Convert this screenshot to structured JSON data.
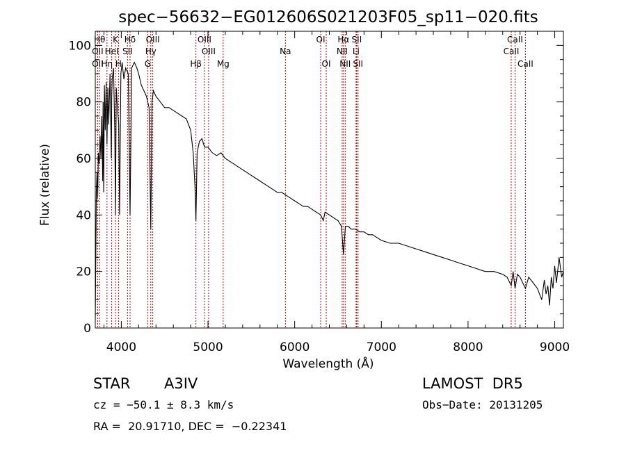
{
  "chart_data": {
    "type": "line",
    "title": "spec−56632−EG012606S021203F05_sp11−020.fits",
    "xlabel": "Wavelength (Å)",
    "ylabel": "Flux (relative)",
    "xlim": [
      3700,
      9100
    ],
    "ylim": [
      0,
      105
    ],
    "x_ticks": [
      4000,
      5000,
      6000,
      7000,
      8000,
      9000
    ],
    "y_ticks": [
      0,
      20,
      40,
      60,
      80,
      100
    ],
    "grid": false,
    "line_color": "#000000",
    "marker_color": "#cc0000",
    "spectrum": {
      "name": "",
      "x": [
        3700,
        3712,
        3720,
        3728,
        3735,
        3745,
        3755,
        3765,
        3775,
        3785,
        3790,
        3797,
        3805,
        3815,
        3825,
        3835,
        3845,
        3855,
        3870,
        3885,
        3889,
        3895,
        3910,
        3925,
        3933,
        3942,
        3955,
        3970,
        3980,
        3995,
        4010,
        4030,
        4050,
        4080,
        4101,
        4120,
        4150,
        4180,
        4200,
        4230,
        4260,
        4290,
        4320,
        4340,
        4355,
        4370,
        4400,
        4450,
        4500,
        4550,
        4600,
        4650,
        4700,
        4750,
        4800,
        4830,
        4850,
        4861,
        4875,
        4900,
        4930,
        4960,
        5000,
        5050,
        5100,
        5150,
        5200,
        5250,
        5300,
        5350,
        5400,
        5450,
        5500,
        5550,
        5600,
        5650,
        5700,
        5750,
        5800,
        5850,
        5900,
        5950,
        6000,
        6050,
        6100,
        6150,
        6200,
        6250,
        6300,
        6330,
        6350,
        6400,
        6450,
        6500,
        6540,
        6563,
        6585,
        6620,
        6650,
        6700,
        6750,
        6800,
        6850,
        6900,
        6950,
        7000,
        7100,
        7200,
        7300,
        7400,
        7500,
        7600,
        7700,
        7800,
        7900,
        8000,
        8100,
        8200,
        8300,
        8400,
        8450,
        8498,
        8520,
        8542,
        8570,
        8600,
        8662,
        8700,
        8750,
        8800,
        8850,
        8880,
        8900,
        8920,
        8940,
        8960,
        8980,
        9000,
        9020,
        9050,
        9080,
        9100
      ],
      "y": [
        3,
        48,
        55,
        46,
        62,
        58,
        68,
        60,
        75,
        52,
        80,
        48,
        86,
        70,
        87,
        65,
        85,
        72,
        90,
        60,
        82,
        88,
        92,
        70,
        40,
        85,
        78,
        72,
        40,
        90,
        94,
        88,
        92,
        90,
        40,
        92,
        94,
        92,
        90,
        86,
        84,
        82,
        78,
        35,
        80,
        84,
        82,
        80,
        78,
        78,
        77,
        76,
        75,
        74,
        70,
        62,
        50,
        38,
        62,
        66,
        67,
        64,
        64,
        62,
        61,
        62,
        60,
        59,
        58,
        57,
        56,
        55,
        54,
        53,
        52,
        51,
        50,
        49,
        48,
        48,
        47,
        46,
        45,
        44,
        43,
        43,
        42,
        41,
        40,
        38,
        41,
        40,
        39,
        38,
        36,
        26,
        36,
        36,
        35,
        35,
        34,
        34,
        33,
        33,
        32,
        31,
        30,
        30,
        29,
        28,
        27,
        26,
        25,
        24,
        23,
        22,
        21,
        20,
        20,
        19,
        18,
        15,
        20,
        14,
        19,
        18,
        14,
        18,
        16,
        14,
        10,
        17,
        12,
        15,
        8,
        18,
        14,
        22,
        16,
        25,
        18,
        20
      ]
    },
    "line_markers": [
      {
        "label": "Hθ",
        "x": 3750,
        "row": 1
      },
      {
        "label": "OII",
        "x": 3727,
        "row": 2
      },
      {
        "label": "OII",
        "x": 3727,
        "row": 3
      },
      {
        "label": "Hη",
        "x": 3835,
        "row": 3
      },
      {
        "label": "K",
        "x": 3933,
        "row": 1
      },
      {
        "label": "HeI",
        "x": 3889,
        "row": 2
      },
      {
        "label": "H",
        "x": 3968,
        "row": 3
      },
      {
        "label": "Hδ",
        "x": 4101,
        "row": 1
      },
      {
        "label": "SII",
        "x": 4072,
        "row": 2
      },
      {
        "label": "OIII",
        "x": 4363,
        "row": 1
      },
      {
        "label": "Hγ",
        "x": 4340,
        "row": 2
      },
      {
        "label": "G",
        "x": 4305,
        "row": 3
      },
      {
        "label": "Hβ",
        "x": 4861,
        "row": 3
      },
      {
        "label": "OIII",
        "x": 4959,
        "row": 1
      },
      {
        "label": "OIII",
        "x": 5007,
        "row": 2
      },
      {
        "label": "Mg",
        "x": 5175,
        "row": 3
      },
      {
        "label": "Na",
        "x": 5893,
        "row": 2
      },
      {
        "label": "OI",
        "x": 6300,
        "row": 1
      },
      {
        "label": "OI",
        "x": 6364,
        "row": 3
      },
      {
        "label": "Hα",
        "x": 6563,
        "row": 1
      },
      {
        "label": "NII",
        "x": 6548,
        "row": 2
      },
      {
        "label": "NII",
        "x": 6583,
        "row": 3
      },
      {
        "label": "SII",
        "x": 6716,
        "row": 1
      },
      {
        "label": "Li",
        "x": 6708,
        "row": 2
      },
      {
        "label": "SII",
        "x": 6731,
        "row": 3
      },
      {
        "label": "CaII",
        "x": 8542,
        "row": 1
      },
      {
        "label": "CaII",
        "x": 8498,
        "row": 2
      },
      {
        "label": "CaII",
        "x": 8662,
        "row": 3
      }
    ]
  },
  "info": {
    "object_type": "STAR",
    "subclass": "A3IV",
    "survey": "LAMOST  DR5",
    "redshift": "cz = −50.1 ± 8.3 km/s",
    "obs_date": "Obs−Date: 20131205",
    "coords": "RA =  20.91710, DEC =  −0.22341"
  }
}
